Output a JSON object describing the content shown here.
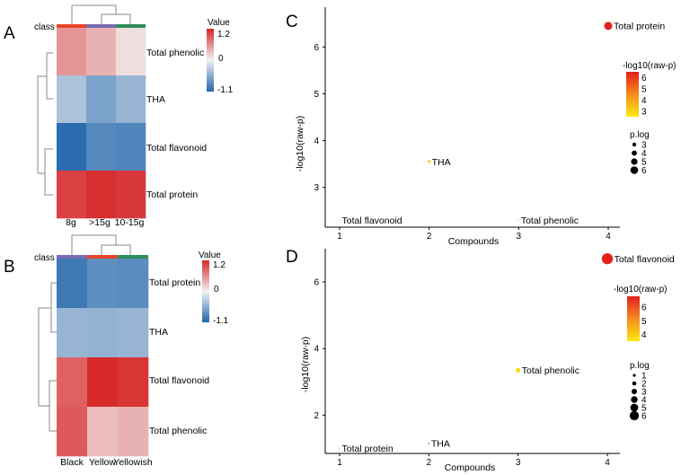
{
  "panels": [
    "A",
    "B",
    "C",
    "D"
  ],
  "chart_data": [
    {
      "type": "heatmap",
      "panel": "A",
      "columns": [
        "8g",
        ">15g",
        "10-15g"
      ],
      "rows": [
        "Total phenolic",
        "THA",
        "Total flavonoid",
        "Total protein"
      ],
      "values": [
        [
          0.55,
          0.38,
          0.12
        ],
        [
          -0.38,
          -0.62,
          -0.48
        ],
        [
          -1.05,
          -0.82,
          -0.85
        ],
        [
          1.05,
          1.15,
          1.1
        ]
      ],
      "class_label": "class",
      "class_colors": [
        "#e8442a",
        "#7b6bb3",
        "#2e8b57"
      ],
      "legend_title": "Value",
      "legend_ticks": [
        "1.2",
        "0",
        "-1.1"
      ],
      "legend_range": [
        -1.1,
        1.2
      ]
    },
    {
      "type": "heatmap",
      "panel": "B",
      "columns": [
        "Black",
        "Yellow",
        "Yellowish"
      ],
      "rows": [
        "Total protein",
        "THA",
        "Total flavonoid",
        "Total phenolic"
      ],
      "values": [
        [
          -0.95,
          -0.78,
          -0.8
        ],
        [
          -0.48,
          -0.5,
          -0.48
        ],
        [
          0.85,
          1.18,
          1.12
        ],
        [
          0.9,
          0.32,
          0.38
        ]
      ],
      "class_label": "class",
      "class_colors": [
        "#7b6bb3",
        "#e8442a",
        "#2e8b57"
      ],
      "legend_title": "Value",
      "legend_ticks": [
        "1.2",
        "0",
        "-1.1"
      ],
      "legend_range": [
        -1.1,
        1.2
      ]
    },
    {
      "type": "scatter",
      "panel": "C",
      "xlabel": "Compounds",
      "ylabel": "-log10(raw-p)",
      "xlim": [
        0.85,
        4.1
      ],
      "ylim": [
        2.15,
        6.85
      ],
      "xticks": [
        1,
        2,
        3,
        4
      ],
      "yticks": [
        3,
        4,
        5,
        6
      ],
      "points": [
        {
          "label": "Total flavonoid",
          "x": 1,
          "y": 2.3,
          "color": "#ffe680"
        },
        {
          "label": "THA",
          "x": 2,
          "y": 3.55,
          "color": "#f5c31a"
        },
        {
          "label": "Total phenolic",
          "x": 3,
          "y": 2.3,
          "color": "#ffe680"
        },
        {
          "label": "Total protein",
          "x": 4,
          "y": 6.45,
          "color": "#e3201b"
        }
      ],
      "color_legend_title": "-log10(raw-p)",
      "color_legend_ticks": [
        "6",
        "5",
        "4",
        "3"
      ],
      "color_legend_range": [
        2.5,
        6.5
      ],
      "size_legend_title": "p.log",
      "size_legend_values": [
        "3",
        "4",
        "5",
        "6"
      ]
    },
    {
      "type": "scatter",
      "panel": "D",
      "xlabel": "Compounds",
      "ylabel": "-log10(raw-p)",
      "xlim": [
        0.85,
        4.1
      ],
      "ylim": [
        0.85,
        7.0
      ],
      "xticks": [
        1,
        2,
        3,
        4
      ],
      "yticks": [
        2,
        4,
        6
      ],
      "points": [
        {
          "label": "Total protein",
          "x": 1,
          "y": 1.0,
          "color": "#dddddd"
        },
        {
          "label": "THA",
          "x": 2,
          "y": 1.15,
          "color": "#999999"
        },
        {
          "label": "Total phenolic",
          "x": 3,
          "y": 3.35,
          "color": "#f5dc10"
        },
        {
          "label": "Total flavonoid",
          "x": 4,
          "y": 6.7,
          "color": "#e3201b"
        }
      ],
      "color_legend_title": "-log10(raw-p)",
      "color_legend_ticks": [
        "6",
        "5",
        "4"
      ],
      "color_legend_range": [
        3.5,
        6.8
      ],
      "size_legend_title": "p.log",
      "size_legend_values": [
        "1",
        "2",
        "3",
        "4",
        "5",
        "6"
      ]
    }
  ]
}
